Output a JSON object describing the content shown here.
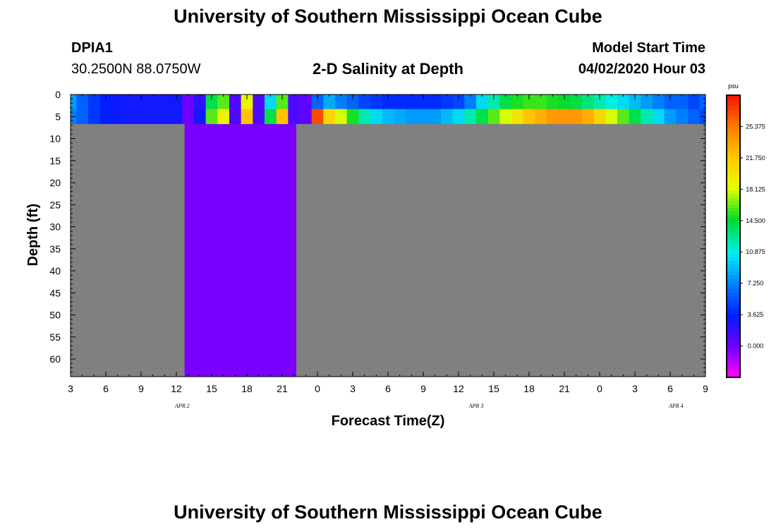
{
  "header": {
    "title_top": "University of Southern Mississippi Ocean Cube",
    "title_bottom": "University of Southern Mississippi Ocean Cube",
    "station": "DPIA1",
    "location": "30.2500N 88.0750W",
    "chart_title": "2-D Salinity at Depth",
    "model_start_label": "Model Start Time",
    "model_start_value": "04/02/2020 Hour 03"
  },
  "chart_data": {
    "type": "heatmap",
    "title": "2-D Salinity at Depth",
    "xlabel": "Forecast Time(Z)",
    "ylabel": "Depth (ft)",
    "x_tick_labels": [
      "3",
      "6",
      "9",
      "12",
      "15",
      "18",
      "21",
      "0",
      "3",
      "6",
      "9",
      "12",
      "15",
      "18",
      "21",
      "0",
      "3",
      "6",
      "9"
    ],
    "x_date_labels": [
      "APR 2",
      "APR 3",
      "APR 4"
    ],
    "y_tick_labels": [
      "0",
      "5",
      "10",
      "15",
      "20",
      "25",
      "30",
      "35",
      "40",
      "45",
      "50",
      "55",
      "60"
    ],
    "x_range_hours": [
      3,
      57
    ],
    "y_range_ft": [
      0,
      64
    ],
    "data_depth_range_ft": [
      0,
      6.7
    ],
    "colorbar": {
      "unit": "psu",
      "tick_labels": [
        "25.375",
        "21.750",
        "18.125",
        "14.500",
        "10.875",
        "7.250",
        "3.625",
        "0.000"
      ],
      "range": [
        -3.625,
        29.0
      ]
    },
    "missing_color": "#808080",
    "missing_depth_value_psu": -0.3,
    "upper_layer_ft": [
      0,
      3.3
    ],
    "lower_layer_ft": [
      3.3,
      6.7
    ],
    "gap_fill_period_hours": [
      12.7,
      22.2
    ],
    "time_hours": [
      3,
      4,
      5,
      6,
      7,
      8,
      9,
      10,
      11,
      12,
      13,
      14,
      15,
      16,
      17,
      18,
      19,
      20,
      21,
      22,
      23,
      24,
      25,
      26,
      27,
      28,
      29,
      30,
      31,
      32,
      33,
      34,
      35,
      36,
      37,
      38,
      39,
      40,
      41,
      42,
      43,
      44,
      45,
      46,
      47,
      48,
      49,
      50,
      51,
      52,
      53,
      54,
      55,
      56,
      57
    ],
    "salinity_upper_psu": [
      8.0,
      6.0,
      4.5,
      3.5,
      3.2,
      3.0,
      3.0,
      3.0,
      3.0,
      3.0,
      0.0,
      2.0,
      14.0,
      16.0,
      1.0,
      19.0,
      1.0,
      10.0,
      16.0,
      1.0,
      0.5,
      6.0,
      8.5,
      7.0,
      6.0,
      5.0,
      4.5,
      4.0,
      4.0,
      4.0,
      4.0,
      4.0,
      4.5,
      5.0,
      7.0,
      10.0,
      12.0,
      14.0,
      15.0,
      15.5,
      15.5,
      15.0,
      14.5,
      14.0,
      13.0,
      12.0,
      11.0,
      10.0,
      9.0,
      8.0,
      7.0,
      6.0,
      6.0,
      5.0,
      6.0
    ],
    "salinity_lower_psu": [
      7.0,
      6.0,
      4.5,
      3.5,
      3.2,
      3.0,
      3.0,
      3.0,
      3.0,
      3.0,
      0.0,
      3.0,
      16.0,
      19.0,
      1.0,
      22.0,
      1.0,
      14.0,
      22.0,
      1.0,
      0.5,
      27.0,
      21.0,
      18.0,
      15.0,
      12.0,
      10.0,
      9.0,
      8.5,
      8.0,
      8.0,
      8.0,
      9.0,
      10.0,
      12.0,
      14.0,
      16.0,
      18.0,
      20.0,
      22.0,
      23.0,
      24.0,
      24.0,
      24.0,
      23.0,
      21.0,
      18.0,
      16.0,
      14.0,
      12.0,
      10.0,
      8.0,
      7.0,
      6.0,
      5.0
    ]
  }
}
